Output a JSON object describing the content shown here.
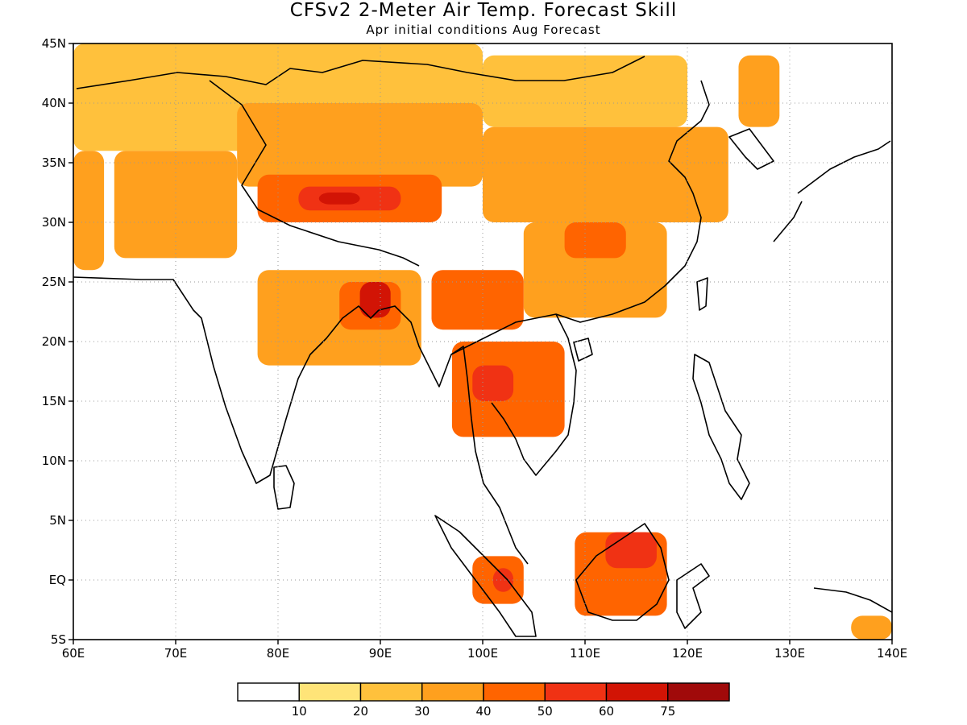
{
  "title": "CFSv2 2-Meter Air Temp. Forecast Skill",
  "subtitle": "Apr initial conditions  Aug Forecast",
  "map": {
    "lon_range": [
      60,
      140
    ],
    "lat_range": [
      -5,
      45
    ],
    "lon_ticks": [
      {
        "value": 60,
        "label": "60E"
      },
      {
        "value": 70,
        "label": "70E"
      },
      {
        "value": 80,
        "label": "80E"
      },
      {
        "value": 90,
        "label": "90E"
      },
      {
        "value": 100,
        "label": "100E"
      },
      {
        "value": 110,
        "label": "110E"
      },
      {
        "value": 120,
        "label": "120E"
      },
      {
        "value": 130,
        "label": "130E"
      },
      {
        "value": 140,
        "label": "140E"
      }
    ],
    "lat_ticks": [
      {
        "value": 45,
        "label": "45N"
      },
      {
        "value": 40,
        "label": "40N"
      },
      {
        "value": 35,
        "label": "35N"
      },
      {
        "value": 30,
        "label": "30N"
      },
      {
        "value": 25,
        "label": "25N"
      },
      {
        "value": 20,
        "label": "20N"
      },
      {
        "value": 15,
        "label": "15N"
      },
      {
        "value": 10,
        "label": "10N"
      },
      {
        "value": 5,
        "label": "5N"
      },
      {
        "value": 0,
        "label": "EQ"
      },
      {
        "value": -5,
        "label": "5S"
      }
    ],
    "gridlines": "dotted"
  },
  "colorbar": {
    "colors": [
      "#ffffff",
      "#ffe478",
      "#ffc13c",
      "#ffa01e",
      "#ff6400",
      "#f03214",
      "#d21405",
      "#a00a0a"
    ],
    "labels": [
      "10",
      "20",
      "30",
      "40",
      "50",
      "60",
      "75"
    ]
  },
  "skill_regions": [
    {
      "lon": [
        60,
        100
      ],
      "lat": [
        36,
        45
      ],
      "level": 2
    },
    {
      "lon": [
        60,
        63
      ],
      "lat": [
        26,
        36
      ],
      "level": 3
    },
    {
      "lon": [
        64,
        76
      ],
      "lat": [
        27,
        36
      ],
      "level": 3
    },
    {
      "lon": [
        76,
        100
      ],
      "lat": [
        33,
        40
      ],
      "level": 3
    },
    {
      "lon": [
        78,
        96
      ],
      "lat": [
        30,
        34
      ],
      "level": 4
    },
    {
      "lon": [
        82,
        92
      ],
      "lat": [
        31,
        33
      ],
      "level": 5
    },
    {
      "lon": [
        84,
        88
      ],
      "lat": [
        31.5,
        32.5
      ],
      "level": 6
    },
    {
      "lon": [
        100,
        120
      ],
      "lat": [
        38,
        44
      ],
      "level": 2
    },
    {
      "lon": [
        100,
        124
      ],
      "lat": [
        30,
        38
      ],
      "level": 3
    },
    {
      "lon": [
        104,
        118
      ],
      "lat": [
        22,
        30
      ],
      "level": 3
    },
    {
      "lon": [
        108,
        114
      ],
      "lat": [
        27,
        30
      ],
      "level": 4
    },
    {
      "lon": [
        78,
        94
      ],
      "lat": [
        18,
        26
      ],
      "level": 3
    },
    {
      "lon": [
        86,
        92
      ],
      "lat": [
        21,
        25
      ],
      "level": 4
    },
    {
      "lon": [
        88,
        91
      ],
      "lat": [
        22,
        25
      ],
      "level": 6
    },
    {
      "lon": [
        95,
        104
      ],
      "lat": [
        21,
        26
      ],
      "level": 4
    },
    {
      "lon": [
        97,
        108
      ],
      "lat": [
        12,
        20
      ],
      "level": 4
    },
    {
      "lon": [
        99,
        103
      ],
      "lat": [
        15,
        18
      ],
      "level": 5
    },
    {
      "lon": [
        109,
        118
      ],
      "lat": [
        -3,
        4
      ],
      "level": 4
    },
    {
      "lon": [
        112,
        117
      ],
      "lat": [
        1,
        4
      ],
      "level": 5
    },
    {
      "lon": [
        99,
        104
      ],
      "lat": [
        -2,
        2
      ],
      "level": 4
    },
    {
      "lon": [
        101,
        103
      ],
      "lat": [
        -1,
        1
      ],
      "level": 5
    },
    {
      "lon": [
        125,
        129
      ],
      "lat": [
        38,
        44
      ],
      "level": 3
    },
    {
      "lon": [
        136,
        140
      ],
      "lat": [
        -5,
        -3
      ],
      "level": 3
    }
  ],
  "icons": {
    "coastline": "coastline-outline"
  }
}
